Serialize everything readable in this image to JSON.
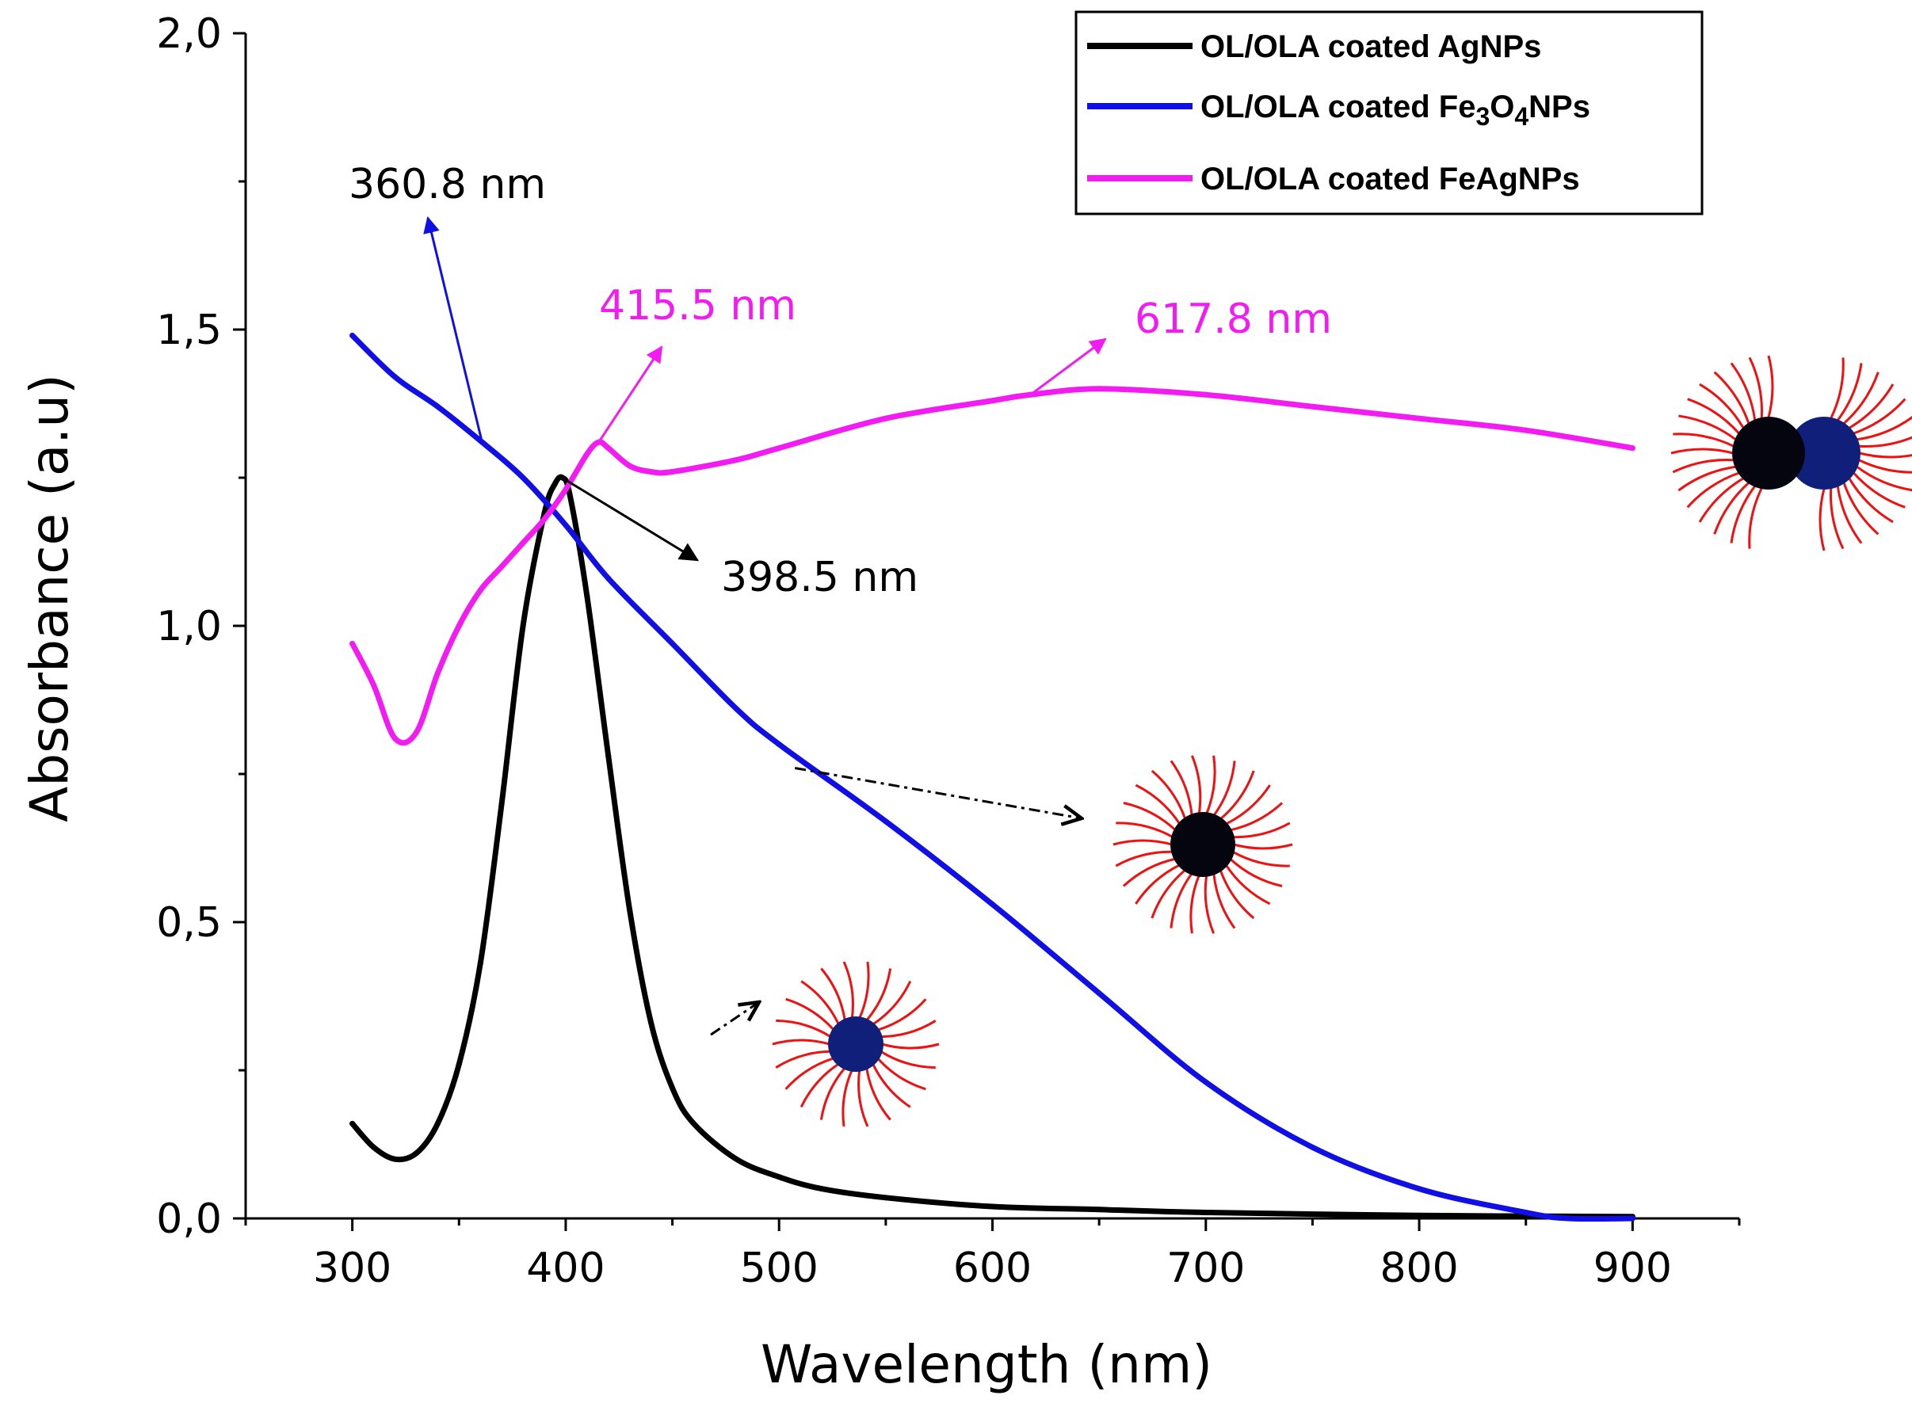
{
  "chart_data": {
    "type": "line",
    "xlabel": "Wavelength (nm)",
    "ylabel": "Absorbance (a.u)",
    "xlim": [
      250,
      950
    ],
    "ylim": [
      0,
      2.0
    ],
    "x_ticks": [
      300,
      400,
      500,
      600,
      700,
      800,
      900
    ],
    "x_tick_labels": [
      "300",
      "400",
      "500",
      "600",
      "700",
      "800",
      "900"
    ],
    "y_ticks": [
      0,
      0.5,
      1.0,
      1.5,
      2.0
    ],
    "y_tick_labels": [
      "0,0",
      "0,5",
      "1,0",
      "1,5",
      "2,0"
    ],
    "legend_position": "top-right",
    "series": [
      {
        "name": "OL/OLA coated AgNPs",
        "legend_parts": [
          [
            "OL/OLA coated AgNPs",
            "normal"
          ]
        ],
        "color": "#000000",
        "x": [
          300,
          310,
          320,
          330,
          340,
          350,
          360,
          370,
          380,
          390,
          395,
          398.5,
          402,
          410,
          420,
          430,
          440,
          450,
          460,
          480,
          500,
          520,
          550,
          600,
          650,
          700,
          800,
          900
        ],
        "y": [
          0.16,
          0.12,
          0.1,
          0.11,
          0.16,
          0.26,
          0.43,
          0.7,
          1.0,
          1.19,
          1.24,
          1.25,
          1.22,
          1.05,
          0.78,
          0.52,
          0.33,
          0.22,
          0.16,
          0.1,
          0.07,
          0.05,
          0.035,
          0.02,
          0.015,
          0.01,
          0.005,
          0.003
        ]
      },
      {
        "name": "OL/OLA coated Fe3O4NPs",
        "legend_parts": [
          [
            "OL/OLA coated Fe",
            "normal"
          ],
          [
            "3",
            "sub"
          ],
          [
            "O",
            "normal"
          ],
          [
            "4",
            "sub"
          ],
          [
            "NPs",
            "normal"
          ]
        ],
        "color": "#1010e6",
        "x": [
          300,
          320,
          340,
          360.8,
          380,
          400,
          420,
          450,
          480,
          500,
          550,
          600,
          650,
          700,
          750,
          800,
          850,
          870,
          900
        ],
        "y": [
          1.49,
          1.42,
          1.37,
          1.31,
          1.25,
          1.17,
          1.08,
          0.97,
          0.86,
          0.8,
          0.67,
          0.53,
          0.38,
          0.23,
          0.12,
          0.05,
          0.01,
          0.0,
          0.0
        ]
      },
      {
        "name": "OL/OLA coated FeAgNPs",
        "legend_parts": [
          [
            "OL/OLA coated FeAgNPs",
            "normal"
          ]
        ],
        "color": "#f21cf2",
        "x": [
          300,
          310,
          320,
          330,
          340,
          350,
          360,
          370,
          380,
          390,
          400,
          410,
          415.5,
          420,
          430,
          440,
          450,
          480,
          500,
          550,
          600,
          617.8,
          650,
          700,
          750,
          800,
          850,
          900
        ],
        "y": [
          0.97,
          0.9,
          0.81,
          0.82,
          0.92,
          1.0,
          1.06,
          1.1,
          1.14,
          1.18,
          1.23,
          1.29,
          1.31,
          1.3,
          1.27,
          1.26,
          1.26,
          1.28,
          1.3,
          1.35,
          1.38,
          1.39,
          1.4,
          1.39,
          1.37,
          1.35,
          1.33,
          1.3
        ]
      }
    ],
    "annotations": [
      {
        "text": "360.8 nm",
        "color": "#000000",
        "arrow_color": "#1010e6"
      },
      {
        "text": "415.5 nm",
        "color": "#f21cf2",
        "arrow_color": "#f21cf2"
      },
      {
        "text": "617.8 nm",
        "color": "#f21cf2",
        "arrow_color": "#f21cf2"
      },
      {
        "text": "398.5 nm",
        "color": "#000000",
        "arrow_color": "#000000"
      }
    ]
  },
  "colors": {
    "ligand": "#f01010",
    "core_dark": "#050510",
    "core_blue": "#10207a"
  }
}
